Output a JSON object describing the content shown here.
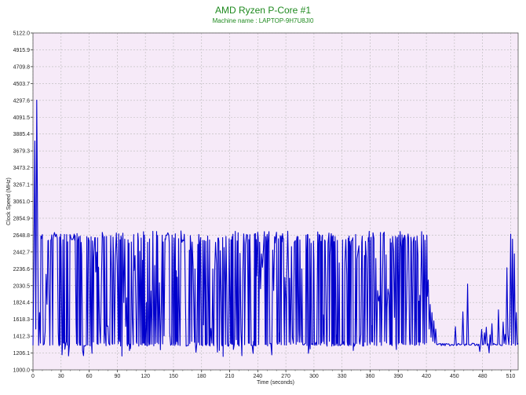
{
  "chart_data": {
    "type": "line",
    "title": "AMD Ryzen P-Core #1",
    "subtitle": "Machine name : LAPTOP-9H7U8JI0",
    "xlabel": "Time (seconds)",
    "ylabel": "Clock Speed (MHz)",
    "xlim": [
      0,
      518
    ],
    "ylim": [
      1000.0,
      5122.0
    ],
    "x_ticks": [
      "0",
      "30",
      "60",
      "90",
      "120",
      "150",
      "180",
      "210",
      "240",
      "270",
      "300",
      "330",
      "360",
      "390",
      "420",
      "450",
      "480",
      "510"
    ],
    "y_ticks": [
      "1000.0",
      "1206.1",
      "1412.3",
      "1618.3",
      "1824.4",
      "2030.5",
      "2236.6",
      "2442.7",
      "2648.8",
      "2854.9",
      "3061.0",
      "3267.1",
      "3473.2",
      "3679.3",
      "3885.4",
      "4091.5",
      "4297.6",
      "4503.7",
      "4709.8",
      "4915.9",
      "5122.0"
    ],
    "grid": true,
    "series": [
      {
        "color": "#0000cc",
        "description": "Core clock sampled roughly every second; initial spike near 4300 MHz, then oscillation between ~1300 and ~2650 MHz until ~420 s, after which it settles near ~1300 MHz with occasional spikes."
      }
    ]
  }
}
